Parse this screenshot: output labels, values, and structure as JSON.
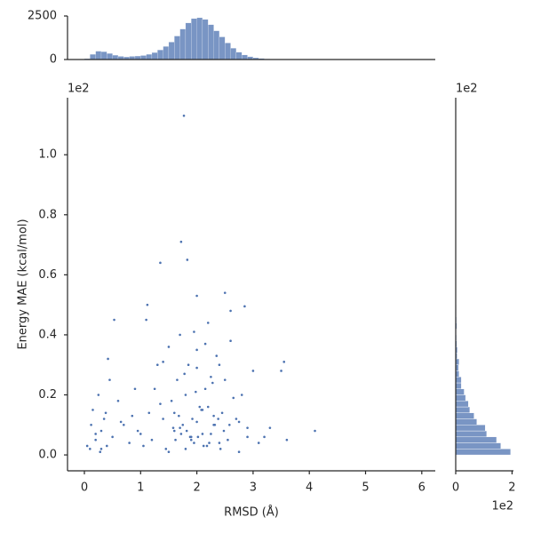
{
  "chart_data": [
    {
      "type": "histogram",
      "color": "#4c72b0",
      "bins": [
        0,
        0.1,
        0.2,
        0.3,
        0.4,
        0.5,
        0.6,
        0.7,
        0.8,
        0.9,
        1.0,
        1.1,
        1.2,
        1.3,
        1.4,
        1.5,
        1.6,
        1.7,
        1.8,
        1.9,
        2.0,
        2.1,
        2.2,
        2.3,
        2.4,
        2.5,
        2.6,
        2.7,
        2.8,
        2.9,
        3.0,
        3.1,
        3.2,
        3.3,
        3.4,
        3.5,
        3.6
      ],
      "values": [
        50,
        300,
        480,
        450,
        350,
        250,
        180,
        150,
        180,
        200,
        230,
        300,
        400,
        550,
        750,
        1000,
        1350,
        1750,
        2100,
        2350,
        2400,
        2300,
        2000,
        1650,
        1300,
        950,
        650,
        420,
        260,
        160,
        100,
        60,
        35,
        20,
        10,
        5
      ],
      "xlim": [
        -0.3,
        6.24
      ],
      "ylim": [
        0,
        2500
      ],
      "yticks": [
        0,
        2500
      ]
    },
    {
      "type": "scatter",
      "color": "#4c72b0",
      "x_label": "RMSD (Å)",
      "y_label": "Energy MAE (kcal/mol)",
      "y_offset_label": "1e2",
      "x": [
        1.77,
        1.72,
        1.83,
        1.35,
        2.5,
        2.0,
        2.85,
        0.53,
        3.55,
        4.1,
        3.6,
        1.1,
        1.12,
        0.1,
        0.15,
        0.2,
        0.25,
        0.3,
        0.35,
        0.4,
        0.45,
        0.5,
        0.6,
        0.7,
        0.8,
        0.9,
        1.0,
        0.05,
        0.12,
        0.28,
        0.38,
        0.42,
        1.2,
        1.3,
        1.4,
        1.5,
        1.6,
        1.7,
        1.8,
        1.9,
        2.0,
        2.1,
        2.2,
        2.3,
        2.4,
        2.5,
        2.6,
        2.7,
        2.8,
        2.9,
        3.0,
        3.1,
        3.2,
        1.45,
        1.55,
        1.65,
        1.75,
        1.85,
        1.95,
        2.05,
        2.15,
        2.25,
        2.35,
        2.45,
        2.55,
        2.65,
        2.75,
        1.25,
        1.35,
        1.58,
        1.68,
        1.78,
        1.88,
        1.98,
        2.08,
        2.18,
        2.28,
        2.38,
        2.48,
        2.58,
        1.9,
        2.0,
        2.1,
        2.2,
        1.8,
        1.7,
        2.3,
        2.4,
        1.6,
        1.5,
        2.12,
        2.02,
        1.92,
        1.82,
        2.22,
        2.32,
        2.42,
        1.72,
        1.62,
        0.95,
        1.05,
        0.65,
        3.3,
        3.5,
        2.9,
        2.6,
        2.0,
        2.25,
        1.4,
        1.15,
        0.3,
        0.2,
        0.85,
        2.75,
        1.95,
        2.15
      ],
      "values": [
        1.13,
        0.71,
        0.65,
        0.64,
        0.54,
        0.53,
        0.495,
        0.45,
        0.31,
        0.08,
        0.05,
        0.45,
        0.5,
        0.02,
        0.15,
        0.05,
        0.2,
        0.08,
        0.12,
        0.03,
        0.25,
        0.06,
        0.18,
        0.1,
        0.04,
        0.22,
        0.07,
        0.03,
        0.1,
        0.01,
        0.14,
        0.32,
        0.05,
        0.3,
        0.12,
        0.36,
        0.08,
        0.4,
        0.2,
        0.06,
        0.35,
        0.15,
        0.44,
        0.1,
        0.3,
        0.25,
        0.38,
        0.12,
        0.2,
        0.09,
        0.28,
        0.04,
        0.06,
        0.02,
        0.18,
        0.25,
        0.1,
        0.3,
        0.04,
        0.16,
        0.22,
        0.07,
        0.33,
        0.14,
        0.05,
        0.19,
        0.11,
        0.22,
        0.17,
        0.09,
        0.13,
        0.27,
        0.06,
        0.21,
        0.15,
        0.03,
        0.24,
        0.12,
        0.08,
        0.1,
        0.05,
        0.11,
        0.07,
        0.16,
        0.02,
        0.09,
        0.13,
        0.04,
        0.14,
        0.01,
        0.03,
        0.06,
        0.12,
        0.08,
        0.04,
        0.1,
        0.02,
        0.07,
        0.05,
        0.08,
        0.03,
        0.11,
        0.09,
        0.28,
        0.06,
        0.48,
        0.29,
        0.26,
        0.31,
        0.14,
        0.02,
        0.07,
        0.13,
        0.01,
        0.41,
        0.37
      ],
      "xlim": [
        -0.3,
        6.24
      ],
      "ylim": [
        -0.053,
        1.19
      ],
      "xticks": [
        0,
        1,
        2,
        3,
        4,
        5,
        6
      ],
      "yticks": [
        {
          "value": 0,
          "label": "0.0"
        },
        {
          "value": 0.2,
          "label": "0.2"
        },
        {
          "value": 0.4,
          "label": "0.4"
        },
        {
          "value": 0.6,
          "label": "0.6"
        },
        {
          "value": 0.8,
          "label": "0.8"
        },
        {
          "value": 1.0,
          "label": "1.0"
        }
      ]
    },
    {
      "type": "histogram",
      "orientation": "horizontal",
      "color": "#4c72b0",
      "x_offset_label": "1e2",
      "y_offset_label": "1e2",
      "bins": [
        0,
        0.02,
        0.04,
        0.06,
        0.08,
        0.1,
        0.12,
        0.14,
        0.16,
        0.18,
        0.2,
        0.22,
        0.24,
        0.26,
        0.28,
        0.3,
        0.32,
        0.34,
        0.36,
        0.38,
        0.4,
        0.42,
        0.44,
        0.46,
        0.48,
        0.5,
        0.52,
        0.54
      ],
      "values": [
        1.95,
        1.6,
        1.45,
        1.1,
        1.05,
        0.75,
        0.65,
        0.5,
        0.45,
        0.35,
        0.3,
        0.2,
        0.2,
        0.12,
        0.1,
        0.12,
        0.05,
        0.06,
        0.04,
        0.03,
        0.02,
        0.04,
        0.03,
        0.02,
        0.02,
        0.01,
        0.01
      ],
      "xlim": [
        0,
        2.05
      ],
      "ylim": [
        -0.053,
        1.19
      ],
      "xticks": [
        0,
        2
      ]
    }
  ]
}
